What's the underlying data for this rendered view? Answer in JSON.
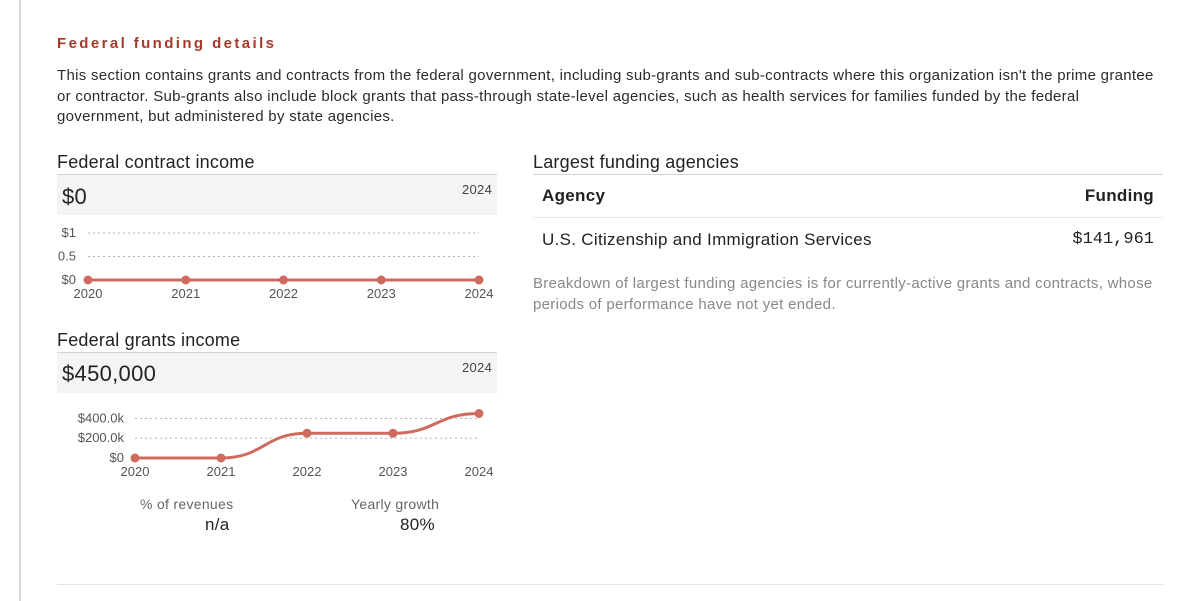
{
  "section": {
    "title": "Federal funding details",
    "intro": "This section contains grants and contracts from the federal government, including sub-grants and sub-contracts where this organization isn't the prime grantee or contractor. Sub-grants also include block grants that pass-through state-level agencies, such as health services for families funded by the federal government, but administered by state agencies."
  },
  "contract_income": {
    "heading": "Federal contract income",
    "value": "$0",
    "year": "2024"
  },
  "grants_income": {
    "heading": "Federal grants income",
    "value": "$450,000",
    "year": "2024",
    "stats": {
      "revenues_label": "% of revenues",
      "revenues_value": "n/a",
      "growth_label": "Yearly growth",
      "growth_value": "80%"
    }
  },
  "agencies": {
    "heading": "Largest funding agencies",
    "col_agency": "Agency",
    "col_funding": "Funding",
    "rows": [
      {
        "agency": "U.S. Citizenship and Immigration Services",
        "funding": "$141,961"
      }
    ],
    "note": "Breakdown of largest funding agencies is for currently-active grants and contracts, whose periods of performance have not yet ended."
  },
  "colors": {
    "accent": "#a33a2c",
    "line": "#cf6b5e",
    "band": "#f4f4f4"
  },
  "chart_data": [
    {
      "type": "line",
      "x": [
        "2020",
        "2021",
        "2022",
        "2023",
        "2024"
      ],
      "values": [
        0,
        0,
        0,
        0,
        0
      ],
      "ylim": [
        0,
        1
      ],
      "yticks": [
        {
          "value": 1,
          "label": "$1"
        },
        {
          "value": 0.5,
          "label": "0.5"
        },
        {
          "value": 0,
          "label": "$0"
        }
      ],
      "grid": true
    },
    {
      "type": "line",
      "x": [
        "2020",
        "2021",
        "2022",
        "2023",
        "2024"
      ],
      "values": [
        0,
        0,
        250000,
        250000,
        450000
      ],
      "ylim": [
        0,
        450000
      ],
      "yticks": [
        {
          "value": 400000,
          "label": "$400.0k"
        },
        {
          "value": 200000,
          "label": "$200.0k"
        },
        {
          "value": 0,
          "label": "$0"
        }
      ],
      "grid": true
    }
  ]
}
